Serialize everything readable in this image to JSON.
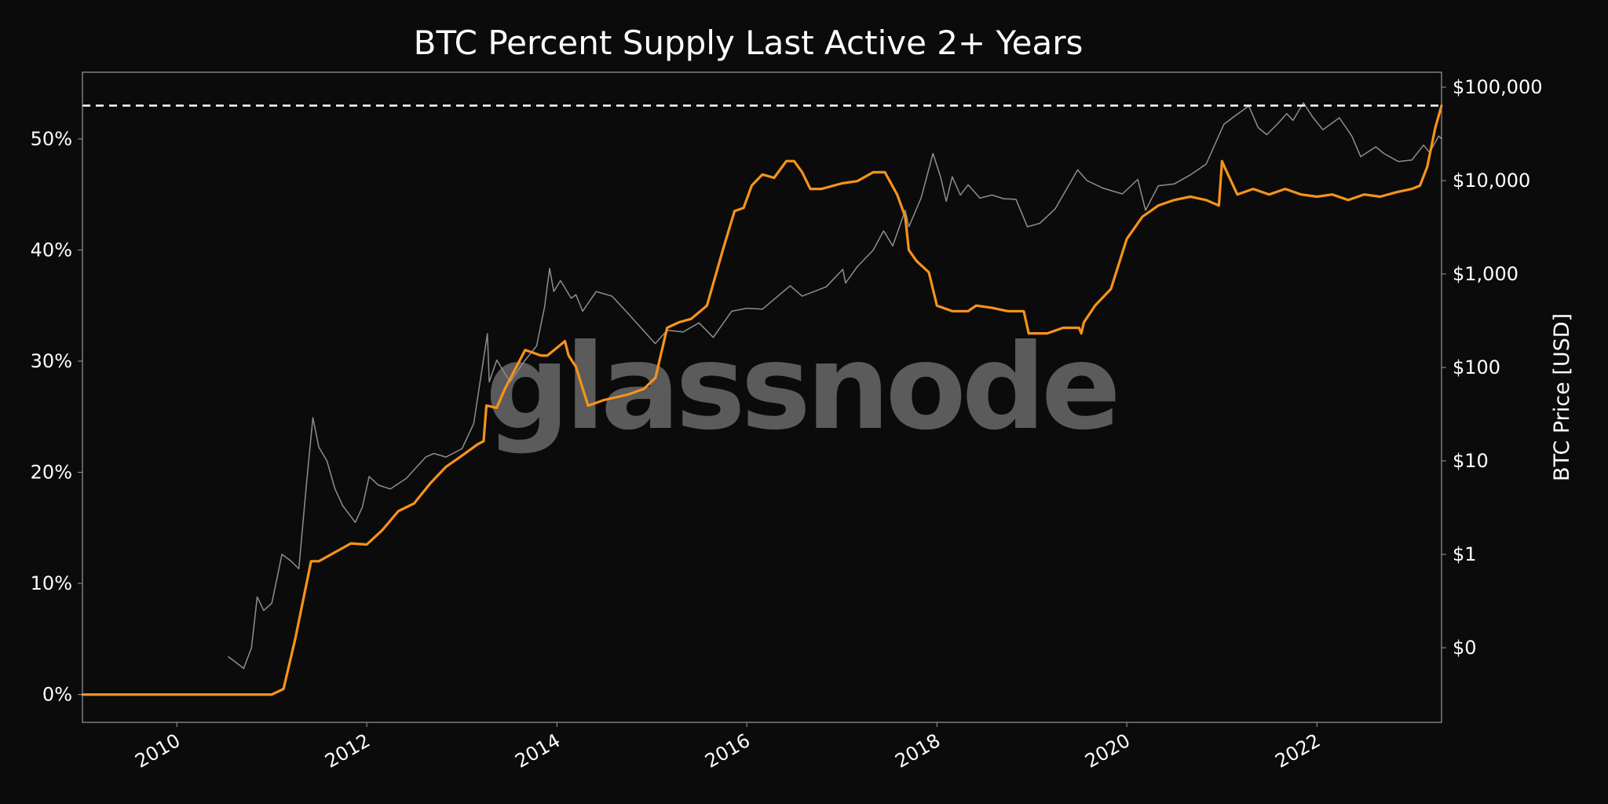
{
  "chart_data": {
    "type": "line",
    "title": "BTC Percent Supply Last Active 2+ Years",
    "watermark": "glassnode",
    "x_axis": {
      "type": "date",
      "ticks": [
        "2010",
        "2012",
        "2014",
        "2016",
        "2018",
        "2020",
        "2022"
      ],
      "range": [
        "2009-01-03",
        "2023-04-25"
      ]
    },
    "y_left": {
      "ticks": [
        "0%",
        "10%",
        "20%",
        "30%",
        "40%",
        "50%"
      ],
      "range": [
        -2.5,
        56
      ]
    },
    "y_right": {
      "label": "BTC Price [USD]",
      "scale": "log",
      "ticks": [
        "$0",
        "$1",
        "$10",
        "$100",
        "$1,000",
        "$10,000",
        "$100,000"
      ],
      "tick_values": [
        0.1,
        1,
        10,
        100,
        1000,
        10000,
        100000
      ]
    },
    "reference_line": {
      "value": 53.0,
      "style": "dashed",
      "color": "#ffffff"
    },
    "series": [
      {
        "axis": "left",
        "color": "#f7931a",
        "x": [
          "2009-01-03",
          "2011-01-01",
          "2011-02-15",
          "2011-04-01",
          "2011-06-01",
          "2011-07-01",
          "2011-09-01",
          "2011-11-01",
          "2012-01-01",
          "2012-03-01",
          "2012-05-01",
          "2012-07-01",
          "2012-09-01",
          "2012-11-01",
          "2013-01-01",
          "2013-03-01",
          "2013-03-25",
          "2013-04-05",
          "2013-05-15",
          "2013-06-15",
          "2013-09-01",
          "2013-11-01",
          "2013-11-25",
          "2014-01-01",
          "2014-02-01",
          "2014-02-15",
          "2014-03-15",
          "2014-05-01",
          "2014-07-01",
          "2014-10-01",
          "2014-12-01",
          "2015-01-15",
          "2015-03-01",
          "2015-04-15",
          "2015-06-01",
          "2015-08-01",
          "2015-10-01",
          "2015-11-15",
          "2015-12-20",
          "2016-01-20",
          "2016-03-01",
          "2016-04-15",
          "2016-06-01",
          "2016-07-01",
          "2016-08-01",
          "2016-09-01",
          "2016-10-15",
          "2017-01-01",
          "2017-03-01",
          "2017-05-01",
          "2017-06-15",
          "2017-08-01",
          "2017-09-01",
          "2017-09-15",
          "2017-10-15",
          "2017-12-01",
          "2018-01-01",
          "2018-03-01",
          "2018-05-01",
          "2018-06-01",
          "2018-08-01",
          "2018-10-01",
          "2018-12-01",
          "2018-12-20",
          "2019-01-01",
          "2019-03-01",
          "2019-05-01",
          "2019-07-01",
          "2019-07-10",
          "2019-07-20",
          "2019-09-01",
          "2019-11-01",
          "2020-01-01",
          "2020-03-01",
          "2020-05-01",
          "2020-07-01",
          "2020-09-01",
          "2020-11-01",
          "2020-12-20",
          "2021-01-01",
          "2021-01-10",
          "2021-03-01",
          "2021-05-01",
          "2021-07-01",
          "2021-09-01",
          "2021-11-01",
          "2022-01-01",
          "2022-03-01",
          "2022-05-01",
          "2022-07-01",
          "2022-09-01",
          "2022-11-01",
          "2023-01-01",
          "2023-02-01",
          "2023-03-01",
          "2023-04-01",
          "2023-04-25"
        ],
        "values": [
          0.0,
          0.0,
          0.5,
          5.0,
          12.0,
          12.0,
          12.8,
          13.6,
          13.5,
          14.8,
          16.5,
          17.2,
          19.0,
          20.5,
          21.5,
          22.5,
          22.8,
          26.0,
          25.8,
          27.5,
          31.0,
          30.5,
          30.5,
          31.2,
          31.8,
          30.5,
          29.5,
          26.0,
          26.5,
          27.0,
          27.5,
          28.5,
          33.0,
          33.5,
          33.8,
          35.0,
          40.0,
          43.5,
          43.8,
          45.8,
          46.8,
          46.5,
          48.0,
          48.0,
          47.0,
          45.5,
          45.5,
          46.0,
          46.2,
          47.0,
          47.0,
          45.0,
          43.0,
          40.0,
          39.0,
          38.0,
          35.0,
          34.5,
          34.5,
          35.0,
          34.8,
          34.5,
          34.5,
          32.5,
          32.5,
          32.5,
          33.0,
          33.0,
          32.5,
          33.5,
          35.0,
          36.5,
          41.0,
          43.0,
          44.0,
          44.5,
          44.8,
          44.5,
          44.0,
          48.0,
          47.5,
          45.0,
          45.5,
          45.0,
          45.5,
          45.0,
          44.8,
          45.0,
          44.5,
          45.0,
          44.8,
          45.2,
          45.5,
          45.8,
          47.5,
          51.0,
          53.0
        ]
      },
      {
        "axis": "right",
        "color": "#8e8e8e",
        "x": [
          "2010-07-18",
          "2010-08-15",
          "2010-09-15",
          "2010-10-15",
          "2010-11-06",
          "2010-12-01",
          "2011-01-01",
          "2011-02-09",
          "2011-03-15",
          "2011-04-15",
          "2011-05-15",
          "2011-06-08",
          "2011-07-01",
          "2011-08-01",
          "2011-09-01",
          "2011-10-01",
          "2011-11-18",
          "2011-12-15",
          "2012-01-10",
          "2012-02-15",
          "2012-04-01",
          "2012-06-01",
          "2012-08-15",
          "2012-09-15",
          "2012-11-01",
          "2013-01-01",
          "2013-02-15",
          "2013-04-09",
          "2013-04-16",
          "2013-05-15",
          "2013-07-05",
          "2013-09-01",
          "2013-10-15",
          "2013-11-15",
          "2013-12-04",
          "2013-12-20",
          "2014-01-15",
          "2014-02-25",
          "2014-03-15",
          "2014-04-10",
          "2014-06-01",
          "2014-08-01",
          "2014-10-01",
          "2015-01-14",
          "2015-03-01",
          "2015-05-01",
          "2015-07-01",
          "2015-08-25",
          "2015-11-04",
          "2016-01-01",
          "2016-03-01",
          "2016-06-16",
          "2016-08-01",
          "2016-11-01",
          "2017-01-04",
          "2017-01-15",
          "2017-03-01",
          "2017-05-01",
          "2017-06-10",
          "2017-07-15",
          "2017-09-01",
          "2017-09-15",
          "2017-11-01",
          "2017-12-17",
          "2018-01-15",
          "2018-02-06",
          "2018-03-01",
          "2018-04-01",
          "2018-05-01",
          "2018-06-15",
          "2018-08-01",
          "2018-09-15",
          "2018-11-01",
          "2018-12-15",
          "2019-02-01",
          "2019-04-01",
          "2019-06-26",
          "2019-08-01",
          "2019-10-01",
          "2019-12-15",
          "2020-02-12",
          "2020-03-13",
          "2020-05-01",
          "2020-07-01",
          "2020-09-01",
          "2020-11-01",
          "2021-01-08",
          "2021-02-15",
          "2021-04-14",
          "2021-05-20",
          "2021-06-22",
          "2021-08-01",
          "2021-09-07",
          "2021-10-01",
          "2021-11-10",
          "2021-12-15",
          "2022-01-24",
          "2022-03-28",
          "2022-05-15",
          "2022-06-18",
          "2022-08-15",
          "2022-09-15",
          "2022-11-10",
          "2023-01-01",
          "2023-02-15",
          "2023-03-10",
          "2023-04-14",
          "2023-04-25"
        ],
        "values": [
          0.08,
          0.07,
          0.06,
          0.1,
          0.35,
          0.25,
          0.3,
          1.0,
          0.85,
          0.7,
          6.0,
          29.0,
          14.0,
          10.0,
          5.0,
          3.3,
          2.2,
          3.2,
          6.8,
          5.5,
          5.0,
          6.5,
          11.0,
          12.0,
          11.0,
          13.5,
          25.0,
          230.0,
          70.0,
          120.0,
          70.0,
          120.0,
          170.0,
          450.0,
          1150.0,
          650.0,
          850.0,
          550.0,
          600.0,
          400.0,
          650.0,
          580.0,
          380.0,
          180.0,
          250.0,
          240.0,
          300.0,
          210.0,
          400.0,
          430.0,
          420.0,
          750.0,
          580.0,
          730.0,
          1120.0,
          800.0,
          1200.0,
          1800.0,
          2900.0,
          2000.0,
          4800.0,
          3200.0,
          6500.0,
          19500.0,
          11000.0,
          6000.0,
          11000.0,
          7000.0,
          9000.0,
          6500.0,
          7000.0,
          6400.0,
          6300.0,
          3200.0,
          3500.0,
          5000.0,
          13000.0,
          10000.0,
          8300.0,
          7200.0,
          10300.0,
          4800.0,
          8800.0,
          9200.0,
          11500.0,
          15000.0,
          40000.0,
          48000.0,
          63000.0,
          37000.0,
          31000.0,
          40000.0,
          52000.0,
          44000.0,
          68000.0,
          48000.0,
          35000.0,
          47000.0,
          30000.0,
          18000.0,
          23000.0,
          19500.0,
          16000.0,
          16600.0,
          24000.0,
          20000.0,
          30000.0,
          28000.0
        ]
      }
    ]
  }
}
